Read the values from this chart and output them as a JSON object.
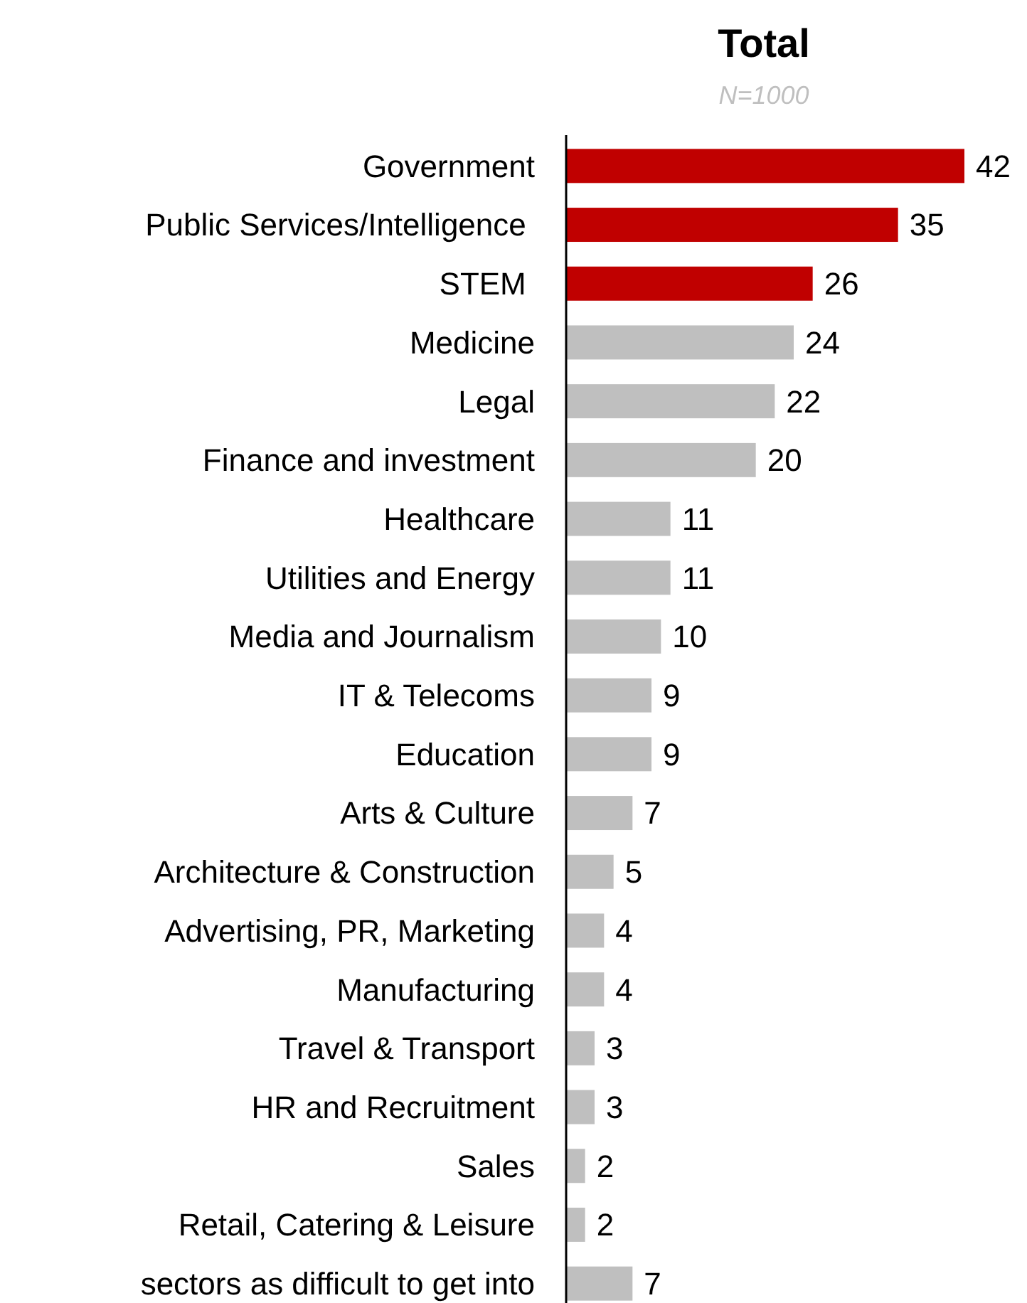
{
  "chart_data": {
    "type": "bar",
    "orientation": "horizontal",
    "title": "Total",
    "subtitle": "N=1000",
    "categories": [
      "Government",
      "Public Services/Intelligence ",
      "STEM ",
      "Medicine",
      "Legal",
      "Finance and investment",
      "Healthcare",
      "Utilities and Energy",
      "Media and Journalism",
      "IT & Telecoms",
      "Education",
      "Arts & Culture",
      "Architecture & Construction",
      "Advertising, PR, Marketing",
      "Manufacturing",
      "Travel & Transport",
      "HR and Recruitment",
      "Sales",
      "Retail, Catering & Leisure",
      "sectors as difficult to get into"
    ],
    "values": [
      42,
      35,
      26,
      24,
      22,
      20,
      11,
      11,
      10,
      9,
      9,
      7,
      5,
      4,
      4,
      3,
      3,
      2,
      2,
      7
    ],
    "colors": [
      "#c00000",
      "#c00000",
      "#c00000",
      "#bfbfbf",
      "#bfbfbf",
      "#bfbfbf",
      "#bfbfbf",
      "#bfbfbf",
      "#bfbfbf",
      "#bfbfbf",
      "#bfbfbf",
      "#bfbfbf",
      "#bfbfbf",
      "#bfbfbf",
      "#bfbfbf",
      "#bfbfbf",
      "#bfbfbf",
      "#bfbfbf",
      "#bfbfbf",
      "#bfbfbf"
    ],
    "data_labels": true
  }
}
